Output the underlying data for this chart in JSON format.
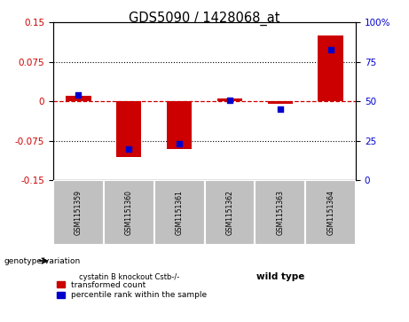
{
  "title": "GDS5090 / 1428068_at",
  "samples": [
    "GSM1151359",
    "GSM1151360",
    "GSM1151361",
    "GSM1151362",
    "GSM1151363",
    "GSM1151364"
  ],
  "transformed_count": [
    0.01,
    -0.105,
    -0.09,
    0.005,
    -0.005,
    0.125
  ],
  "percentile_rank": [
    54,
    20,
    23,
    51,
    45,
    83
  ],
  "ylim_left": [
    -0.15,
    0.15
  ],
  "ylim_right": [
    0,
    100
  ],
  "yticks_left": [
    -0.15,
    -0.075,
    0,
    0.075,
    0.15
  ],
  "yticks_right": [
    0,
    25,
    50,
    75,
    100
  ],
  "groups": [
    {
      "label": "cystatin B knockout Cstb-/-",
      "n": 3,
      "color": "#99EE99"
    },
    {
      "label": "wild type",
      "n": 3,
      "color": "#55DD55"
    }
  ],
  "bar_width": 0.5,
  "red_color": "#CC0000",
  "blue_color": "#0000CC",
  "zero_line_color": "#CC0000",
  "sample_bg_color": "#C0C0C0",
  "legend_red_label": "transformed count",
  "legend_blue_label": "percentile rank within the sample",
  "genotype_label": "genotype/variation"
}
